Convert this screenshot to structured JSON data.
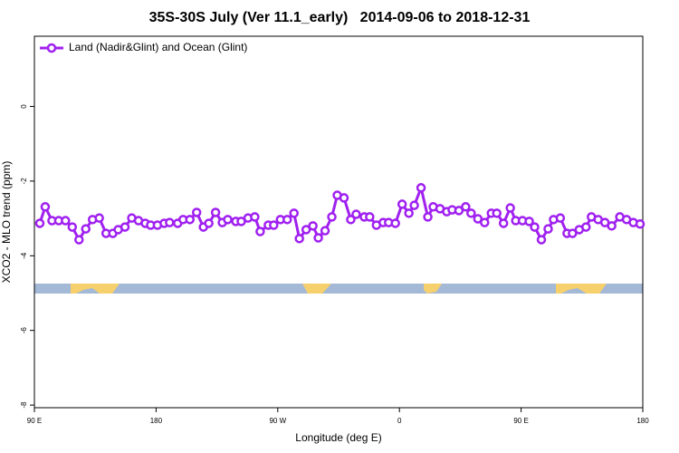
{
  "chart_data": {
    "type": "line",
    "title": "35S-30S July (Ver 11.1_early)   2014-09-06 to 2018-12-31",
    "x_label": "Longitude (deg E)",
    "y_label": "XCO2 - MLO trend (ppm)",
    "xlim": [
      90,
      540
    ],
    "xticks": [
      {
        "value": 90,
        "label": "90 E"
      },
      180,
      {
        "value": 270,
        "label": "90 W"
      },
      {
        "value": 360,
        "label": "0"
      },
      {
        "value": 450,
        "label": "90 E"
      },
      {
        "value": 540,
        "label": "180"
      }
    ],
    "ylim": [
      -8.07,
      1.88
    ],
    "yticks": [
      0,
      -2,
      -4,
      -6,
      -8
    ],
    "grid": false,
    "legend": "top-left",
    "x": [
      94,
      98,
      103,
      108,
      113,
      118,
      123,
      128,
      133,
      138,
      143,
      148,
      152,
      157,
      162,
      167,
      172,
      176,
      181,
      186,
      190,
      196,
      200,
      205,
      210,
      215,
      219,
      224,
      229,
      233,
      239,
      243,
      248,
      253,
      257,
      263,
      267,
      272,
      277,
      282,
      286,
      291,
      296,
      300,
      305,
      310,
      314,
      319,
      324,
      328,
      334,
      338,
      343,
      348,
      352,
      357,
      362,
      367,
      371,
      376,
      381,
      385,
      390,
      395,
      399,
      404,
      409,
      413,
      418,
      423,
      428,
      432,
      437,
      442,
      446,
      451,
      456,
      460,
      465,
      470,
      474,
      479,
      484,
      488,
      493,
      498,
      502,
      507,
      512,
      517,
      523,
      528,
      533,
      538
    ],
    "series": [
      {
        "name": "Land (Nadir&Glint) and Ocean (Glint)",
        "color": "#a020f0",
        "values": [
          -3.13,
          -2.69,
          -3.06,
          -3.06,
          -3.06,
          -3.23,
          -3.57,
          -3.28,
          -3.03,
          -2.99,
          -3.4,
          -3.4,
          -3.3,
          -3.23,
          -2.99,
          -3.06,
          -3.13,
          -3.18,
          -3.18,
          -3.13,
          -3.11,
          -3.13,
          -3.03,
          -3.03,
          -2.84,
          -3.23,
          -3.13,
          -2.84,
          -3.11,
          -3.03,
          -3.08,
          -3.08,
          -2.99,
          -2.96,
          -3.35,
          -3.18,
          -3.18,
          -3.03,
          -3.03,
          -2.86,
          -3.54,
          -3.3,
          -3.2,
          -3.52,
          -3.33,
          -2.96,
          -2.38,
          -2.45,
          -3.03,
          -2.89,
          -2.96,
          -2.96,
          -3.18,
          -3.11,
          -3.11,
          -3.13,
          -2.62,
          -2.86,
          -2.65,
          -2.18,
          -2.96,
          -2.69,
          -2.74,
          -2.82,
          -2.77,
          -2.79,
          -2.69,
          -2.86,
          -3.01,
          -3.11,
          -2.86,
          -2.86,
          -3.13,
          -2.72,
          -3.06,
          -3.06,
          -3.08,
          -3.23,
          -3.57,
          -3.28,
          -3.03,
          -2.99,
          -3.4,
          -3.4,
          -3.3,
          -3.23,
          -2.96,
          -3.03,
          -3.11,
          -3.2,
          -2.96,
          -3.03,
          -3.11,
          -3.15
        ]
      }
    ]
  }
}
